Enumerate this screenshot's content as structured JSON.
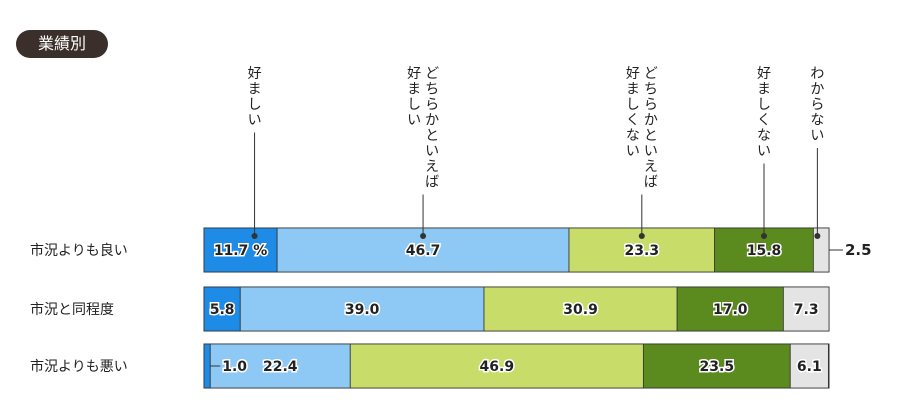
{
  "badge": "業績別",
  "chart_data": {
    "type": "bar",
    "orientation": "horizontal",
    "stacked": true,
    "categories": [
      "市況よりも良い",
      "市況と同程度",
      "市況よりも悪い"
    ],
    "series": [
      {
        "name": "好ましい",
        "values": [
          11.7,
          5.8,
          1.0
        ],
        "color": "#1e8ce6"
      },
      {
        "name": "どちらかといえば好ましい",
        "values": [
          46.7,
          39.0,
          22.4
        ],
        "color": "#8ec9f5"
      },
      {
        "name": "どちらかといえば好ましくない",
        "values": [
          23.3,
          30.9,
          46.9
        ],
        "color": "#c8dc6a"
      },
      {
        "name": "好ましくない",
        "values": [
          15.8,
          17.0,
          23.5
        ],
        "color": "#5b8a1e"
      },
      {
        "name": "わからない",
        "values": [
          2.5,
          7.3,
          6.1
        ],
        "color": "#e4e4e4"
      }
    ],
    "value_labels": [
      [
        "11.7 %",
        "46.7",
        "23.3",
        "15.8",
        "2.5"
      ],
      [
        "5.8",
        "39.0",
        "30.9",
        "17.0",
        "7.3"
      ],
      [
        "1.0",
        "22.4",
        "46.9",
        "23.5",
        "6.1"
      ]
    ],
    "legend_lines": [
      [
        "好ましい"
      ],
      [
        "どちらかといえば",
        "好ましい"
      ],
      [
        "どちらかといえば",
        "好ましくない"
      ],
      [
        "好ましくない"
      ],
      [
        "わからない"
      ]
    ],
    "xlim": [
      0,
      100
    ]
  }
}
